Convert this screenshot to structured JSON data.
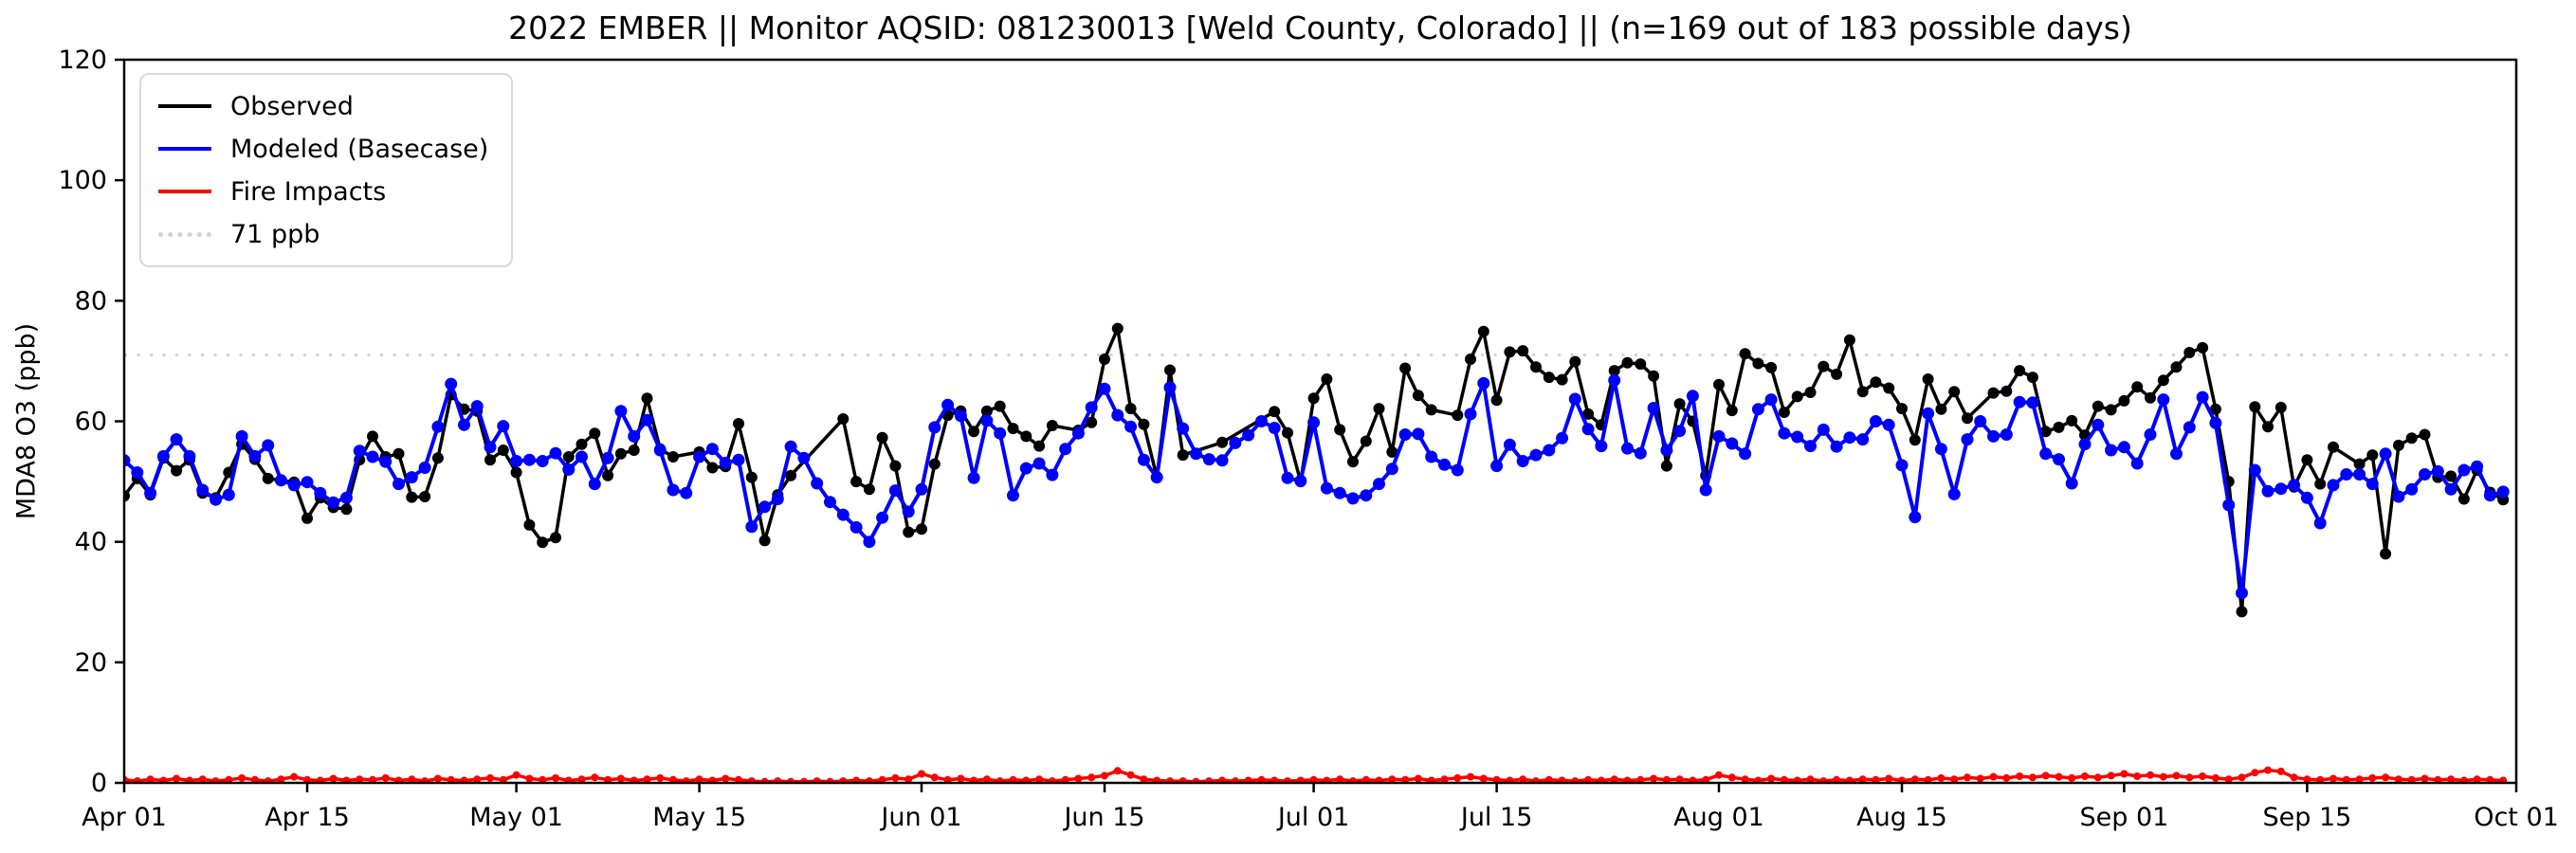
{
  "title": "2022 EMBER || Monitor AQSID: 081230013 [Weld County, Colorado] || (n=169 out of 183 possible days)",
  "y_axis": {
    "label": "MDA8 O3 (ppb)",
    "min": 0,
    "max": 120,
    "ticks": [
      0,
      20,
      40,
      60,
      80,
      100,
      120
    ]
  },
  "x_axis": {
    "ticks": [
      {
        "label": "Apr 01",
        "day": 0
      },
      {
        "label": "Apr 15",
        "day": 14
      },
      {
        "label": "May 01",
        "day": 30
      },
      {
        "label": "May 15",
        "day": 44
      },
      {
        "label": "Jun 01",
        "day": 61
      },
      {
        "label": "Jun 15",
        "day": 75
      },
      {
        "label": "Jul 01",
        "day": 91
      },
      {
        "label": "Jul 15",
        "day": 105
      },
      {
        "label": "Aug 01",
        "day": 122
      },
      {
        "label": "Aug 15",
        "day": 136
      },
      {
        "label": "Sep 01",
        "day": 153
      },
      {
        "label": "Sep 15",
        "day": 167
      },
      {
        "label": "Oct 01",
        "day": 183
      }
    ]
  },
  "legend": {
    "items": [
      {
        "label": "Observed",
        "color": "#000000",
        "style": "solid"
      },
      {
        "label": "Modeled (Basecase)",
        "color": "#0000ff",
        "style": "solid"
      },
      {
        "label": "Fire Impacts",
        "color": "#ff0000",
        "style": "solid"
      },
      {
        "label": "71 ppb",
        "color": "#d3d3d3",
        "style": "dotted"
      }
    ]
  },
  "threshold": {
    "value": 71,
    "label": "71 ppb",
    "color": "#d3d3d3"
  },
  "chart_data": {
    "type": "line",
    "title": "2022 EMBER || Monitor AQSID: 081230013 [Weld County, Colorado] || (n=169 out of 183 possible days)",
    "xlabel": "",
    "ylabel": "MDA8 O3 (ppb)",
    "ylim": [
      0,
      120
    ],
    "grid": false,
    "legend_position": "upper left",
    "x_start_date": "2022-04-01",
    "x_end_date": "2022-09-30",
    "n_days": 183,
    "observed_days": 169,
    "threshold_ppb": 71,
    "series": [
      {
        "name": "Observed",
        "color": "#000000",
        "marker": "circle",
        "values": [
          47.6,
          50.5,
          47.8,
          53.9,
          51.8,
          53.6,
          48.1,
          47.3,
          51.5,
          56.2,
          53.7,
          50.5,
          null,
          49.9,
          43.9,
          47.3,
          45.7,
          45.4,
          53.6,
          57.5,
          54.1,
          54.6,
          47.4,
          47.5,
          53.9,
          64.4,
          62.0,
          61.7,
          53.6,
          55.2,
          51.5,
          42.8,
          39.9,
          40.7,
          54.1,
          56.2,
          58.0,
          51.0,
          54.6,
          55.2,
          63.8,
          55.4,
          54.1,
          null,
          54.9,
          52.3,
          52.5,
          59.6,
          50.7,
          40.2,
          47.8,
          51.0,
          null,
          null,
          null,
          60.4,
          50.0,
          48.7,
          57.3,
          52.6,
          41.6,
          42.1,
          52.9,
          61.0,
          61.7,
          58.3,
          61.7,
          62.5,
          58.8,
          57.5,
          55.9,
          59.3,
          null,
          58.5,
          59.8,
          70.3,
          75.4,
          62.1,
          59.5,
          50.7,
          68.5,
          54.4,
          null,
          null,
          56.5,
          null,
          null,
          null,
          61.6,
          58.1,
          50.0,
          63.8,
          67.0,
          58.6,
          53.3,
          56.7,
          62.1,
          54.9,
          68.8,
          64.3,
          61.9,
          null,
          61.0,
          70.3,
          74.9,
          63.5,
          71.5,
          71.7,
          69.0,
          67.3,
          66.9,
          69.9,
          61.2,
          59.4,
          68.4,
          69.7,
          69.5,
          67.5,
          52.6,
          62.9,
          60.0,
          51.0,
          66.1,
          61.8,
          71.2,
          69.6,
          68.9,
          61.5,
          64.1,
          64.8,
          69.1,
          67.8,
          73.5,
          64.9,
          66.5,
          65.5,
          62.1,
          56.9,
          67.0,
          62.0,
          64.9,
          60.5,
          null,
          64.7,
          65.0,
          68.4,
          67.3,
          58.3,
          59.0,
          60.1,
          57.7,
          62.5,
          61.9,
          63.4,
          65.7,
          63.9,
          66.8,
          69.0,
          71.4,
          72.2,
          62.0,
          50.0,
          28.4,
          62.4,
          59.1,
          62.3,
          49.1,
          53.6,
          49.6,
          55.7,
          null,
          52.9,
          54.4,
          38.0,
          56.0,
          57.2,
          57.8,
          50.7,
          50.9,
          47.1,
          51.9,
          48.2,
          47.0
        ]
      },
      {
        "name": "Modeled (Basecase)",
        "color": "#0000ff",
        "marker": "circle",
        "values": [
          53.5,
          51.5,
          48.1,
          54.2,
          57.0,
          54.2,
          48.6,
          47.0,
          47.8,
          57.5,
          54.2,
          56.0,
          50.2,
          49.4,
          49.9,
          48.1,
          46.5,
          47.3,
          55.1,
          54.1,
          53.3,
          49.6,
          50.7,
          52.3,
          59.1,
          66.2,
          59.4,
          62.5,
          55.7,
          59.2,
          53.4,
          53.6,
          53.4,
          54.7,
          52.0,
          54.1,
          49.6,
          53.9,
          61.7,
          57.5,
          60.2,
          55.2,
          48.6,
          48.1,
          54.1,
          55.4,
          53.1,
          53.6,
          42.5,
          45.8,
          47.1,
          55.8,
          53.9,
          49.7,
          46.6,
          44.5,
          42.4,
          40.0,
          44.0,
          48.5,
          45.0,
          48.7,
          59.0,
          62.7,
          60.9,
          50.6,
          60.1,
          58.0,
          47.7,
          52.2,
          53.0,
          51.1,
          55.4,
          58.0,
          62.3,
          65.4,
          61.0,
          59.1,
          53.6,
          50.7,
          65.6,
          58.8,
          54.6,
          53.7,
          53.5,
          56.4,
          57.7,
          60.0,
          58.9,
          50.6,
          50.1,
          59.8,
          48.9,
          48.1,
          47.2,
          47.7,
          49.6,
          52.1,
          57.8,
          57.9,
          54.1,
          52.8,
          51.9,
          61.2,
          66.3,
          52.6,
          56.1,
          53.4,
          54.4,
          55.2,
          57.2,
          63.7,
          58.7,
          55.9,
          66.8,
          55.5,
          54.7,
          62.2,
          55.2,
          58.4,
          64.2,
          48.6,
          57.5,
          56.3,
          54.6,
          62.0,
          63.6,
          58.0,
          57.4,
          55.9,
          58.6,
          55.8,
          57.3,
          57.0,
          60.0,
          59.4,
          52.7,
          44.1,
          61.3,
          55.4,
          47.9,
          57.0,
          60.0,
          57.5,
          57.8,
          63.2,
          63.1,
          54.6,
          53.7,
          49.7,
          56.2,
          59.4,
          55.2,
          55.7,
          53.0,
          57.8,
          63.6,
          54.6,
          59.0,
          64.0,
          59.7,
          46.1,
          31.5,
          51.9,
          48.4,
          48.8,
          49.4,
          47.3,
          43.1,
          49.4,
          51.2,
          51.2,
          49.6,
          54.6,
          47.5,
          48.7,
          51.2,
          51.7,
          48.7,
          51.9,
          52.5,
          47.7,
          48.3
        ]
      },
      {
        "name": "Fire Impacts",
        "color": "#ff0000",
        "marker": "circle",
        "values": [
          0.5,
          0.3,
          0.6,
          0.4,
          0.7,
          0.4,
          0.6,
          0.3,
          0.5,
          0.8,
          0.5,
          0.3,
          0.6,
          1.0,
          0.5,
          0.4,
          0.7,
          0.4,
          0.6,
          0.5,
          0.8,
          0.4,
          0.6,
          0.3,
          0.7,
          0.5,
          0.4,
          0.6,
          0.8,
          0.5,
          1.3,
          0.7,
          0.5,
          0.8,
          0.4,
          0.6,
          0.9,
          0.5,
          0.7,
          0.4,
          0.6,
          0.8,
          0.5,
          0.3,
          0.6,
          0.4,
          0.7,
          0.5,
          0.3,
          0.2,
          0.3,
          0.2,
          0.2,
          0.3,
          0.2,
          0.3,
          0.4,
          0.3,
          0.5,
          0.8,
          0.6,
          1.5,
          0.9,
          0.5,
          0.7,
          0.4,
          0.6,
          0.3,
          0.5,
          0.4,
          0.6,
          0.3,
          0.5,
          0.7,
          0.9,
          1.2,
          2.0,
          1.3,
          0.6,
          0.4,
          0.3,
          0.3,
          0.2,
          0.3,
          0.4,
          0.3,
          0.4,
          0.5,
          0.4,
          0.3,
          0.4,
          0.5,
          0.4,
          0.6,
          0.3,
          0.5,
          0.4,
          0.6,
          0.5,
          0.7,
          0.4,
          0.6,
          0.8,
          1.0,
          0.7,
          0.5,
          0.4,
          0.6,
          0.3,
          0.5,
          0.4,
          0.3,
          0.5,
          0.4,
          0.6,
          0.4,
          0.5,
          0.7,
          0.5,
          0.6,
          0.4,
          0.5,
          1.3,
          0.9,
          0.6,
          0.4,
          0.7,
          0.5,
          0.4,
          0.6,
          0.3,
          0.5,
          0.4,
          0.6,
          0.5,
          0.7,
          0.4,
          0.6,
          0.5,
          0.8,
          0.6,
          0.9,
          0.7,
          1.0,
          0.8,
          1.1,
          0.9,
          1.2,
          1.0,
          0.8,
          1.1,
          0.9,
          1.2,
          1.5,
          1.1,
          1.3,
          1.0,
          1.2,
          0.9,
          1.1,
          0.8,
          0.6,
          0.9,
          1.7,
          2.1,
          1.9,
          0.9,
          0.6,
          0.5,
          0.7,
          0.5,
          0.6,
          0.8,
          0.9,
          0.6,
          0.5,
          0.7,
          0.5,
          0.6,
          0.4,
          0.6,
          0.5,
          0.4
        ]
      }
    ]
  }
}
